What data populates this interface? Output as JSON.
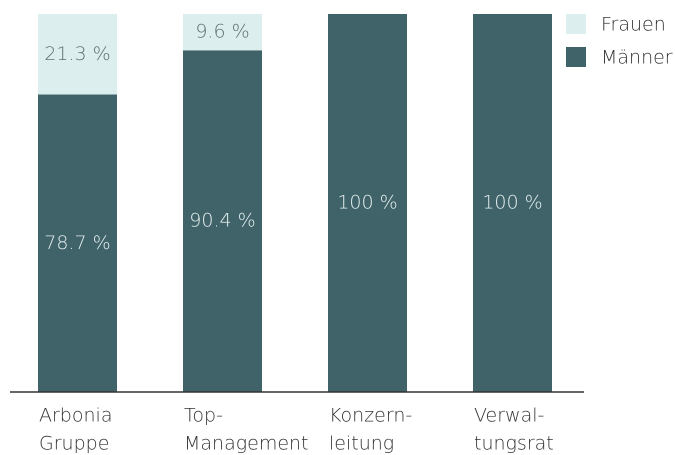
{
  "chart_data": {
    "type": "stacked_bar",
    "categories": [
      [
        "Arbonia",
        "Gruppe"
      ],
      [
        "Top-",
        "Management"
      ],
      [
        "Konzern-",
        "leitung"
      ],
      [
        "Verwal-",
        "tungsrat"
      ]
    ],
    "series": [
      {
        "name": "Männer",
        "color": "#3f6369",
        "label_color": "#e4eeee",
        "values": [
          78.7,
          90.4,
          100,
          100
        ],
        "value_labels": [
          "78.7 %",
          "90.4 %",
          "100 %",
          "100 %"
        ]
      },
      {
        "name": "Frauen",
        "color": "#dceeee",
        "label_color": "#5f7174",
        "values": [
          21.3,
          9.6,
          0,
          0
        ],
        "value_labels": [
          "21.3 %",
          "9.6 %",
          null,
          null
        ]
      }
    ],
    "ylim": [
      0,
      100
    ],
    "legend": "top-right"
  }
}
